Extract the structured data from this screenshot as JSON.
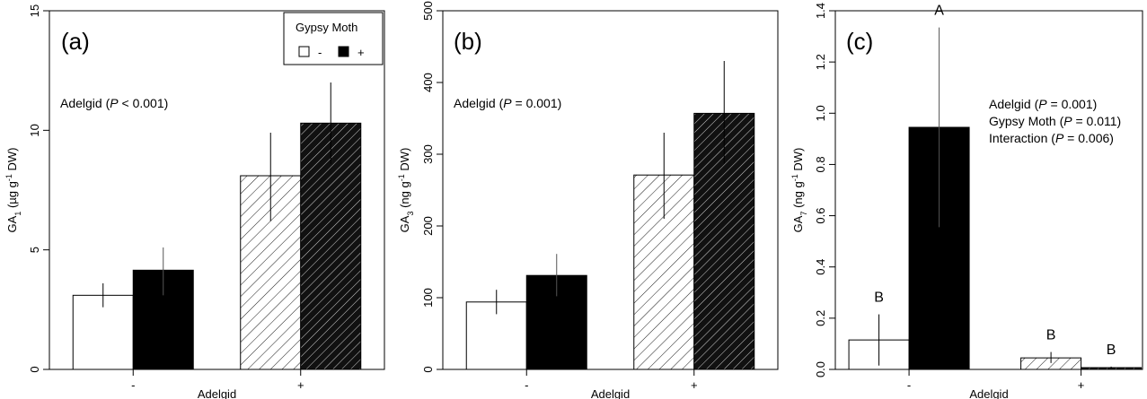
{
  "figure": {
    "legend": {
      "title": "Gypsy Moth",
      "items": [
        {
          "label": "-",
          "fill": "white"
        },
        {
          "label": "+",
          "fill": "black"
        }
      ]
    }
  },
  "chart_data": [
    {
      "type": "bar",
      "panel_label": "(a)",
      "ylabel_main": "GA",
      "ylabel_sub": "1",
      "ylabel_unit": " (µg g",
      "ylabel_sup": "-1",
      "ylabel_end": " DW)",
      "xlabel": "Adelgid",
      "categories": [
        "-",
        "+"
      ],
      "ylim": [
        0,
        15
      ],
      "yticks": [
        0,
        5,
        10,
        15
      ],
      "ytick_labels": [
        "0",
        "5",
        "10",
        "15"
      ],
      "series": [
        {
          "name": "-",
          "values": [
            3.1,
            8.1
          ],
          "err_low": [
            2.6,
            6.2
          ],
          "err_high": [
            3.6,
            9.9
          ]
        },
        {
          "name": "+",
          "values": [
            4.15,
            10.3
          ],
          "err_low": [
            3.1,
            8.6
          ],
          "err_high": [
            5.1,
            12.0
          ]
        }
      ],
      "annotations": [
        {
          "pre": "Adelgid (",
          "italic": "P",
          "post": " < 0.001)"
        }
      ],
      "sig_letters": []
    },
    {
      "type": "bar",
      "panel_label": "(b)",
      "ylabel_main": "GA",
      "ylabel_sub": "3",
      "ylabel_unit": " (ng g",
      "ylabel_sup": "-1",
      "ylabel_end": " DW)",
      "xlabel": "Adelgid",
      "categories": [
        "-",
        "+"
      ],
      "ylim": [
        0,
        500
      ],
      "yticks": [
        0,
        100,
        200,
        300,
        400,
        500
      ],
      "ytick_labels": [
        "0",
        "100",
        "200",
        "300",
        "400",
        "500"
      ],
      "series": [
        {
          "name": "-",
          "values": [
            94,
            271
          ],
          "err_low": [
            77,
            210
          ],
          "err_high": [
            111,
            330
          ]
        },
        {
          "name": "+",
          "values": [
            131,
            357
          ],
          "err_low": [
            102,
            287
          ],
          "err_high": [
            161,
            430
          ]
        }
      ],
      "annotations": [
        {
          "pre": "Adelgid (",
          "italic": "P",
          "post": " = 0.001)"
        }
      ],
      "sig_letters": []
    },
    {
      "type": "bar",
      "panel_label": "(c)",
      "ylabel_main": "GA",
      "ylabel_sub": "7",
      "ylabel_unit": " (ng g",
      "ylabel_sup": "-1",
      "ylabel_end": " DW)",
      "xlabel": "Adelgid",
      "categories": [
        "-",
        "+"
      ],
      "ylim": [
        0,
        1.4
      ],
      "yticks": [
        0,
        0.2,
        0.4,
        0.6,
        0.8,
        1.0,
        1.2,
        1.4
      ],
      "ytick_labels": [
        "0.0",
        "0.2",
        "0.4",
        "0.6",
        "0.8",
        "1.0",
        "1.2",
        "1.4"
      ],
      "series": [
        {
          "name": "-",
          "values": [
            0.115,
            0.045
          ],
          "err_low": [
            0.015,
            0.025
          ],
          "err_high": [
            0.215,
            0.068
          ]
        },
        {
          "name": "+",
          "values": [
            0.945,
            0.007
          ],
          "err_low": [
            0.555,
            0.004
          ],
          "err_high": [
            1.335,
            0.011
          ]
        }
      ],
      "annotations": [
        {
          "pre": "Adelgid (",
          "italic": "P",
          "post": " = 0.001)"
        },
        {
          "pre": "Gypsy Moth (",
          "italic": "P",
          "post": " = 0.011)"
        },
        {
          "pre": "Interaction (",
          "italic": "P",
          "post": " = 0.006)"
        }
      ],
      "sig_letters": [
        {
          "series": 0,
          "group": 0,
          "label": "B"
        },
        {
          "series": 1,
          "group": 0,
          "label": "A"
        },
        {
          "series": 0,
          "group": 1,
          "label": "B"
        },
        {
          "series": 1,
          "group": 1,
          "label": "B"
        }
      ]
    }
  ]
}
